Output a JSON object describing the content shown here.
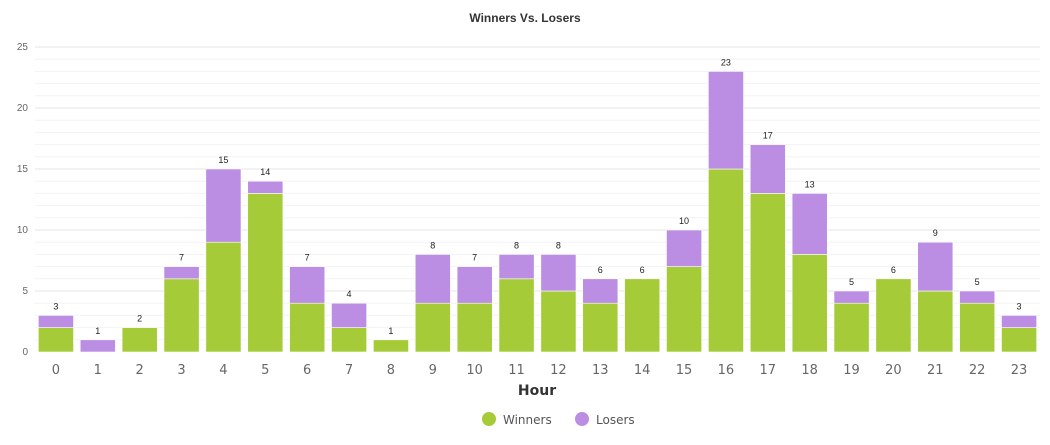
{
  "chart_data": {
    "type": "bar",
    "stacked": true,
    "title": "Winners Vs. Losers",
    "xlabel": "Hour",
    "ylabel": "",
    "ylim": [
      0,
      25
    ],
    "yticks": [
      0,
      5,
      10,
      15,
      20,
      25
    ],
    "grid": true,
    "legend_position": "bottom",
    "categories": [
      "0",
      "1",
      "2",
      "3",
      "4",
      "5",
      "6",
      "7",
      "8",
      "9",
      "10",
      "11",
      "12",
      "13",
      "14",
      "15",
      "16",
      "17",
      "18",
      "19",
      "20",
      "21",
      "22",
      "23"
    ],
    "series": [
      {
        "name": "Winners",
        "color": "#a5cc38",
        "values": [
          2,
          0,
          2,
          6,
          9,
          13,
          4,
          2,
          1,
          4,
          4,
          6,
          5,
          4,
          6,
          7,
          15,
          13,
          8,
          4,
          6,
          5,
          4,
          2
        ]
      },
      {
        "name": "Losers",
        "color": "#bc8ee3",
        "values": [
          1,
          1,
          0,
          1,
          6,
          1,
          3,
          2,
          0,
          4,
          3,
          2,
          3,
          2,
          0,
          3,
          8,
          4,
          5,
          1,
          0,
          4,
          1,
          1
        ]
      }
    ],
    "totals": [
      3,
      1,
      2,
      7,
      15,
      14,
      7,
      4,
      1,
      8,
      7,
      8,
      8,
      6,
      6,
      10,
      23,
      17,
      13,
      5,
      6,
      9,
      5,
      3
    ]
  }
}
